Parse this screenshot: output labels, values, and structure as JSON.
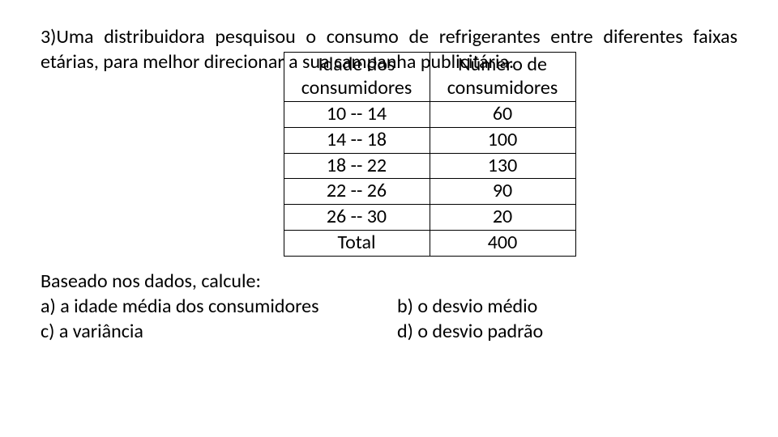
{
  "intro": "3)Uma distribuidora  pesquisou o consumo de refrigerantes entre diferentes faixas etárias, para melhor direcionar a sua campanha publicitária.",
  "table": {
    "header": {
      "col1_line1": "Idade dos",
      "col1_line2": "consumidores",
      "col2_line1": "Número de",
      "col2_line2": "consumidores"
    },
    "rows": [
      {
        "age": "10 -- 14",
        "count": "60"
      },
      {
        "age": "14 -- 18",
        "count": "100"
      },
      {
        "age": "18 -- 22",
        "count": "130"
      },
      {
        "age": "22 -- 26",
        "count": "90"
      },
      {
        "age": "26 -- 30",
        "count": "20"
      },
      {
        "age": "Total",
        "count": "400"
      }
    ],
    "border_color": "#000000",
    "text_color": "#000000",
    "fontsize": 24
  },
  "footer": {
    "prompt": "Baseado nos dados, calcule:",
    "a": "a)   a idade média dos consumidores",
    "b": "b) o desvio médio",
    "c": "c) a variância",
    "d": "d) o desvio padrão"
  },
  "colors": {
    "background": "#ffffff",
    "text": "#000000"
  }
}
